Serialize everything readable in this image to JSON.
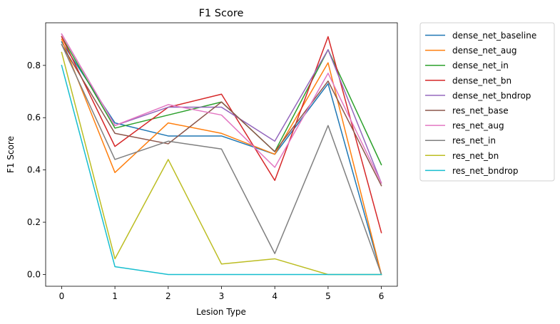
{
  "chart_data": {
    "type": "line",
    "title": "F1 Score",
    "xlabel": "Lesion Type",
    "ylabel": "F1 Score",
    "x": [
      0,
      1,
      2,
      3,
      4,
      5,
      6
    ],
    "x_ticks": [
      "0",
      "1",
      "2",
      "3",
      "4",
      "5",
      "6"
    ],
    "y_ticks": [
      "0.0",
      "0.2",
      "0.4",
      "0.6",
      "0.8"
    ],
    "xlim": [
      -0.3,
      6.3
    ],
    "ylim": [
      -0.045,
      0.963
    ],
    "grid": false,
    "legend_position": "outside-right",
    "series": [
      {
        "name": "dense_net_baseline",
        "color": "#1f77b4",
        "values": [
          0.89,
          0.58,
          0.53,
          0.53,
          0.46,
          0.73,
          0.0
        ]
      },
      {
        "name": "dense_net_aug",
        "color": "#ff7f0e",
        "values": [
          0.9,
          0.39,
          0.58,
          0.54,
          0.46,
          0.81,
          0.0
        ]
      },
      {
        "name": "dense_net_in",
        "color": "#2ca02c",
        "values": [
          0.91,
          0.56,
          0.61,
          0.66,
          0.47,
          0.86,
          0.42
        ]
      },
      {
        "name": "dense_net_bn",
        "color": "#d62728",
        "values": [
          0.91,
          0.49,
          0.64,
          0.69,
          0.36,
          0.91,
          0.16
        ]
      },
      {
        "name": "dense_net_bndrop",
        "color": "#9467bd",
        "values": [
          0.92,
          0.57,
          0.64,
          0.64,
          0.51,
          0.86,
          0.35
        ]
      },
      {
        "name": "res_net_base",
        "color": "#8c564b",
        "values": [
          0.88,
          0.54,
          0.5,
          0.66,
          0.47,
          0.74,
          0.34
        ]
      },
      {
        "name": "res_net_aug",
        "color": "#e377c2",
        "values": [
          0.92,
          0.57,
          0.65,
          0.61,
          0.41,
          0.77,
          0.35
        ]
      },
      {
        "name": "res_net_in",
        "color": "#7f7f7f",
        "values": [
          0.88,
          0.44,
          0.51,
          0.48,
          0.08,
          0.57,
          0.0
        ]
      },
      {
        "name": "res_net_bn",
        "color": "#bcbd22",
        "values": [
          0.85,
          0.06,
          0.44,
          0.04,
          0.06,
          0.0,
          0.0
        ]
      },
      {
        "name": "res_net_bndrop",
        "color": "#17becf",
        "values": [
          0.8,
          0.03,
          0.0,
          0.0,
          0.0,
          0.0,
          0.0
        ]
      }
    ]
  }
}
